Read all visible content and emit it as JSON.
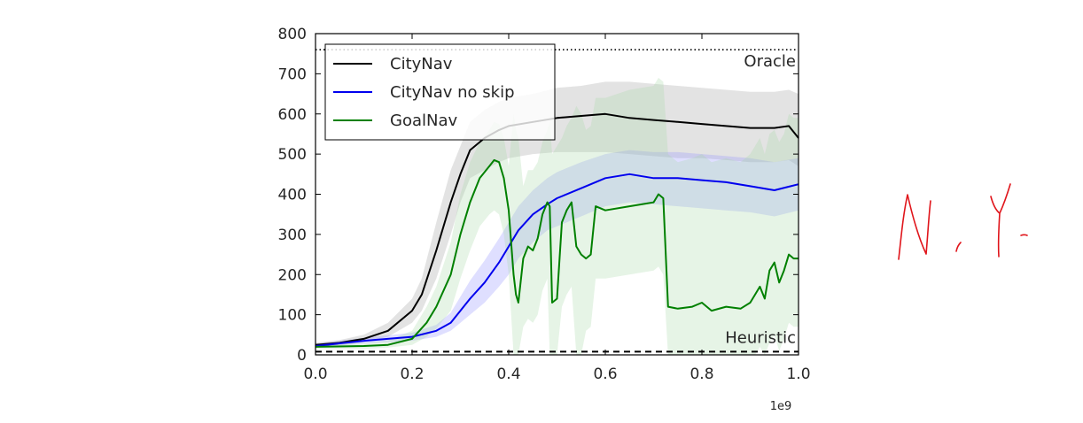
{
  "chart_data": {
    "type": "line",
    "title": "",
    "xlabel": "",
    "ylabel": "",
    "x_offset_text": "1e9",
    "xlim": [
      0.0,
      1.0
    ],
    "ylim": [
      0,
      800
    ],
    "x_ticks": [
      "0.0",
      "0.2",
      "0.4",
      "0.6",
      "0.8",
      "1.0"
    ],
    "y_ticks": [
      "0",
      "100",
      "200",
      "300",
      "400",
      "500",
      "600",
      "700",
      "800"
    ],
    "grid": false,
    "legend_position": "upper-left",
    "reference_lines": [
      {
        "label": "Oracle",
        "value": 760,
        "style": "dotted",
        "color": "#000000"
      },
      {
        "label": "Heuristic",
        "value": 8,
        "style": "dashed",
        "color": "#000000"
      }
    ],
    "series": [
      {
        "name": "CityNav",
        "color": "#000000",
        "band_color": "#9a9a9a",
        "x": [
          0.0,
          0.05,
          0.1,
          0.15,
          0.2,
          0.22,
          0.25,
          0.28,
          0.3,
          0.32,
          0.35,
          0.38,
          0.4,
          0.45,
          0.5,
          0.55,
          0.6,
          0.65,
          0.7,
          0.75,
          0.8,
          0.85,
          0.9,
          0.95,
          0.98,
          1.0
        ],
        "y": [
          25,
          30,
          40,
          60,
          110,
          150,
          260,
          380,
          450,
          510,
          540,
          560,
          570,
          580,
          590,
          595,
          600,
          590,
          585,
          580,
          575,
          570,
          565,
          565,
          570,
          540
        ],
        "band": [
          [
            20,
            30
          ],
          [
            25,
            37
          ],
          [
            32,
            50
          ],
          [
            45,
            80
          ],
          [
            80,
            140
          ],
          [
            110,
            190
          ],
          [
            190,
            330
          ],
          [
            300,
            460
          ],
          [
            380,
            520
          ],
          [
            440,
            580
          ],
          [
            460,
            610
          ],
          [
            480,
            630
          ],
          [
            490,
            640
          ],
          [
            500,
            650
          ],
          [
            505,
            665
          ],
          [
            505,
            670
          ],
          [
            505,
            680
          ],
          [
            500,
            680
          ],
          [
            495,
            675
          ],
          [
            490,
            670
          ],
          [
            490,
            665
          ],
          [
            485,
            660
          ],
          [
            480,
            655
          ],
          [
            480,
            655
          ],
          [
            485,
            660
          ],
          [
            470,
            650
          ]
        ]
      },
      {
        "name": "CityNav no skip",
        "color": "#0000ee",
        "band_color": "#8c8cff",
        "x": [
          0.0,
          0.1,
          0.2,
          0.25,
          0.28,
          0.3,
          0.32,
          0.35,
          0.38,
          0.4,
          0.42,
          0.45,
          0.48,
          0.5,
          0.55,
          0.6,
          0.65,
          0.7,
          0.75,
          0.8,
          0.85,
          0.9,
          0.95,
          1.0
        ],
        "y": [
          22,
          35,
          45,
          60,
          80,
          110,
          140,
          180,
          230,
          270,
          310,
          350,
          375,
          390,
          415,
          440,
          450,
          440,
          440,
          435,
          430,
          420,
          410,
          425
        ],
        "band": [
          [
            18,
            28
          ],
          [
            28,
            42
          ],
          [
            35,
            55
          ],
          [
            45,
            75
          ],
          [
            60,
            105
          ],
          [
            80,
            145
          ],
          [
            100,
            185
          ],
          [
            130,
            235
          ],
          [
            170,
            290
          ],
          [
            200,
            330
          ],
          [
            240,
            370
          ],
          [
            280,
            410
          ],
          [
            310,
            440
          ],
          [
            320,
            455
          ],
          [
            345,
            480
          ],
          [
            370,
            500
          ],
          [
            380,
            510
          ],
          [
            375,
            505
          ],
          [
            370,
            505
          ],
          [
            365,
            500
          ],
          [
            360,
            495
          ],
          [
            355,
            490
          ],
          [
            345,
            480
          ],
          [
            360,
            490
          ]
        ]
      },
      {
        "name": "GoalNav",
        "color": "#008000",
        "band_color": "#a6d8a6",
        "x": [
          0.0,
          0.1,
          0.15,
          0.2,
          0.23,
          0.25,
          0.28,
          0.3,
          0.32,
          0.34,
          0.36,
          0.37,
          0.38,
          0.39,
          0.4,
          0.41,
          0.415,
          0.42,
          0.43,
          0.44,
          0.45,
          0.46,
          0.47,
          0.48,
          0.485,
          0.49,
          0.5,
          0.51,
          0.52,
          0.53,
          0.54,
          0.55,
          0.56,
          0.57,
          0.58,
          0.6,
          0.65,
          0.7,
          0.71,
          0.72,
          0.73,
          0.75,
          0.78,
          0.8,
          0.82,
          0.85,
          0.88,
          0.9,
          0.91,
          0.92,
          0.93,
          0.94,
          0.95,
          0.96,
          0.97,
          0.98,
          0.99,
          1.0
        ],
        "y": [
          20,
          22,
          25,
          40,
          80,
          120,
          200,
          300,
          380,
          440,
          470,
          485,
          480,
          440,
          360,
          200,
          150,
          130,
          240,
          270,
          260,
          290,
          350,
          380,
          370,
          130,
          140,
          330,
          360,
          380,
          270,
          250,
          240,
          250,
          370,
          360,
          370,
          380,
          400,
          390,
          120,
          115,
          120,
          130,
          110,
          120,
          115,
          130,
          150,
          170,
          140,
          210,
          230,
          180,
          210,
          250,
          240,
          240
        ],
        "band": [
          [
            15,
            28
          ],
          [
            15,
            30
          ],
          [
            18,
            36
          ],
          [
            25,
            60
          ],
          [
            45,
            120
          ],
          [
            65,
            170
          ],
          [
            110,
            280
          ],
          [
            190,
            400
          ],
          [
            260,
            480
          ],
          [
            320,
            530
          ],
          [
            350,
            560
          ],
          [
            360,
            580
          ],
          [
            350,
            575
          ],
          [
            300,
            540
          ],
          [
            200,
            470
          ],
          [
            0,
            600
          ],
          [
            0,
            560
          ],
          [
            0,
            540
          ],
          [
            70,
            420
          ],
          [
            90,
            460
          ],
          [
            80,
            460
          ],
          [
            100,
            480
          ],
          [
            160,
            530
          ],
          [
            190,
            560
          ],
          [
            0,
            580
          ],
          [
            0,
            500
          ],
          [
            0,
            520
          ],
          [
            120,
            540
          ],
          [
            150,
            570
          ],
          [
            170,
            590
          ],
          [
            0,
            620
          ],
          [
            0,
            600
          ],
          [
            60,
            560
          ],
          [
            70,
            570
          ],
          [
            190,
            640
          ],
          [
            190,
            640
          ],
          [
            200,
            660
          ],
          [
            210,
            670
          ],
          [
            220,
            690
          ],
          [
            200,
            680
          ],
          [
            0,
            500
          ],
          [
            0,
            480
          ],
          [
            0,
            490
          ],
          [
            0,
            500
          ],
          [
            0,
            480
          ],
          [
            0,
            490
          ],
          [
            0,
            480
          ],
          [
            0,
            500
          ],
          [
            0,
            520
          ],
          [
            20,
            540
          ],
          [
            0,
            500
          ],
          [
            30,
            550
          ],
          [
            50,
            560
          ],
          [
            10,
            530
          ],
          [
            40,
            550
          ],
          [
            80,
            600
          ],
          [
            70,
            590
          ],
          [
            70,
            590
          ]
        ]
      }
    ]
  },
  "annotation": {
    "handwritten_text": "N. Y."
  }
}
